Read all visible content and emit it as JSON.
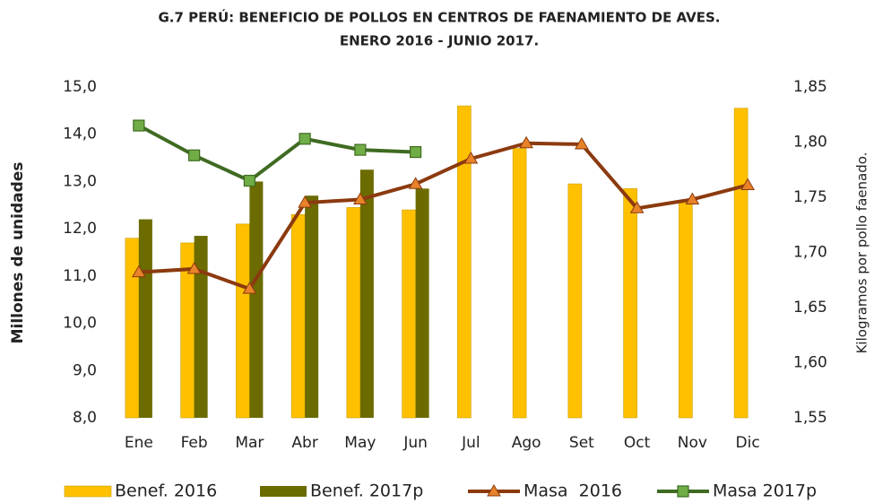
{
  "chart_data": {
    "type": "bar_line",
    "title": "G.7  PERÚ: BENEFICIO DE POLLOS EN CENTROS DE FAENAMIENTO DE AVES.",
    "subtitle": "ENERO 2016 - JUNIO 2017.",
    "y_label": "Millones de unidades",
    "y2_label": "Kilogramos por pollo faenado.",
    "categories": [
      "Ene",
      "Feb",
      "Mar",
      "Abr",
      "May",
      "Jun",
      "Jul",
      "Ago",
      "Set",
      "Oct",
      "Nov",
      "Dic"
    ],
    "ylim": [
      8,
      15
    ],
    "yticks": [
      {
        "value": 8,
        "label": "8,0"
      },
      {
        "value": 9,
        "label": "9,0"
      },
      {
        "value": 10,
        "label": "10,0"
      },
      {
        "value": 11,
        "label": "11,0"
      },
      {
        "value": 12,
        "label": "12,0"
      },
      {
        "value": 13,
        "label": "13,0"
      },
      {
        "value": 14,
        "label": "14,0"
      },
      {
        "value": 15,
        "label": "15,0"
      }
    ],
    "y2lim": [
      1.55,
      1.85
    ],
    "y2ticks": [
      {
        "value": 1.55,
        "label": "1,55"
      },
      {
        "value": 1.6,
        "label": "1,60"
      },
      {
        "value": 1.65,
        "label": "1,65"
      },
      {
        "value": 1.7,
        "label": "1,70"
      },
      {
        "value": 1.75,
        "label": "1,75"
      },
      {
        "value": 1.8,
        "label": "1,80"
      },
      {
        "value": 1.85,
        "label": "1,85"
      }
    ],
    "series": [
      {
        "name": "Benef. 2016",
        "kind": "bar",
        "color": "#FFC000",
        "values": [
          11.8,
          11.7,
          12.1,
          12.3,
          12.45,
          12.4,
          14.6,
          13.7,
          12.95,
          12.85,
          12.6,
          14.55
        ]
      },
      {
        "name": "Benef. 2017p",
        "kind": "bar",
        "color": "#6B6B00",
        "values": [
          12.2,
          11.85,
          13.0,
          12.7,
          13.25,
          12.85,
          null,
          null,
          null,
          null,
          null,
          null
        ]
      },
      {
        "name": "Masa  2016",
        "kind": "line",
        "axis": "y2",
        "color": "#8B3A0F",
        "marker_color": "#E8832A",
        "marker": "triangle",
        "values": [
          1.682,
          1.685,
          1.667,
          1.745,
          1.748,
          1.762,
          1.785,
          1.799,
          1.798,
          1.74,
          1.748,
          1.761
        ]
      },
      {
        "name": "Masa 2017p",
        "kind": "line",
        "axis": "y2",
        "color": "#3F6B22",
        "marker_color": "#70AD47",
        "marker": "square",
        "values": [
          1.815,
          1.788,
          1.765,
          1.803,
          1.793,
          1.791,
          null,
          null,
          null,
          null,
          null,
          null
        ]
      }
    ]
  }
}
